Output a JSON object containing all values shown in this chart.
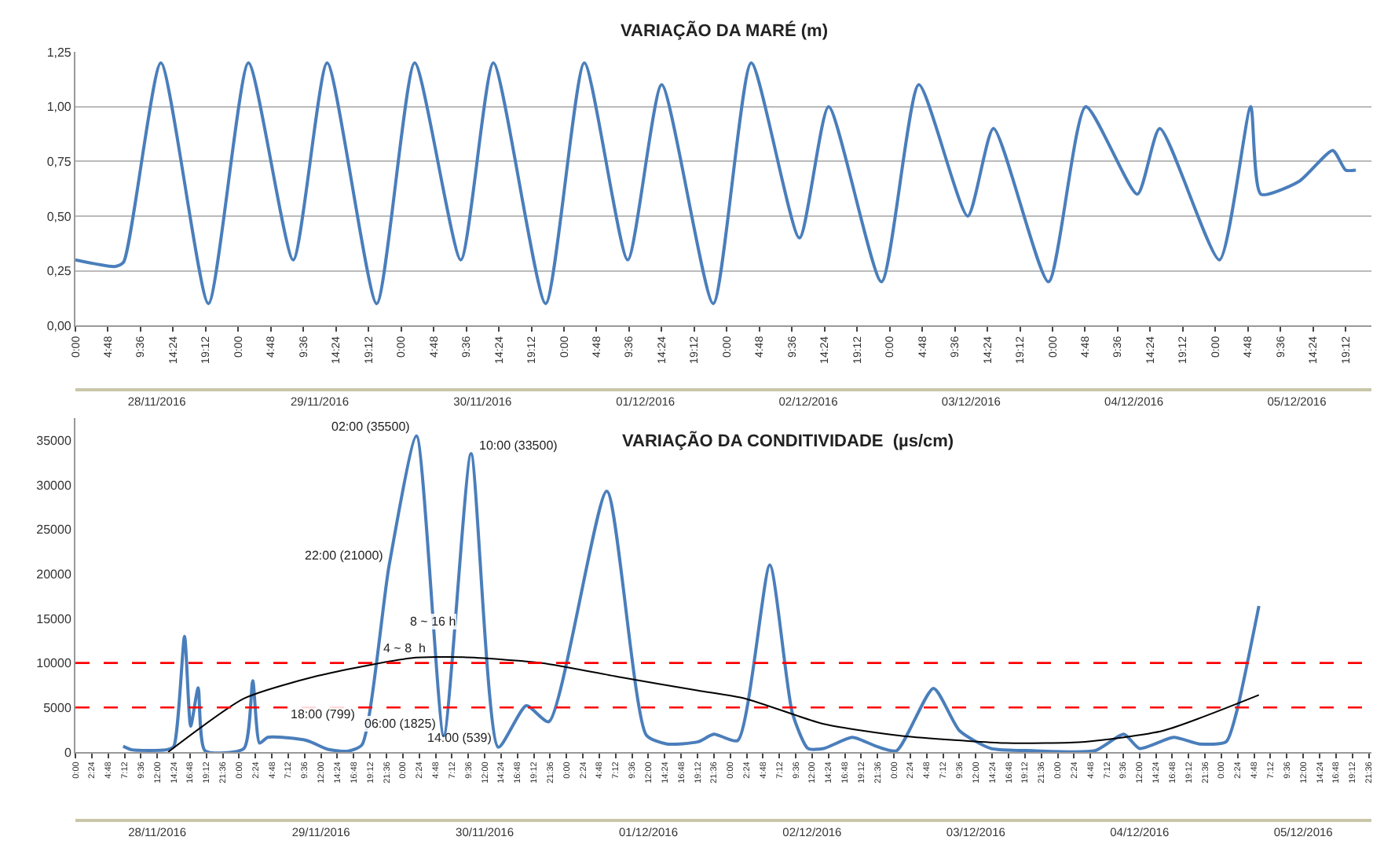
{
  "chart_data": [
    {
      "type": "line",
      "title": "VARIAÇÃO DA MARÉ (m)",
      "grid": "y",
      "x": [
        "2016-11-28T00:00",
        "2016-11-28T05:54",
        "2016-11-28T07:06",
        "2016-11-28T12:36",
        "2016-11-28T19:36",
        "2016-11-29T01:30",
        "2016-11-29T08:06",
        "2016-11-29T13:06",
        "2016-11-29T20:24",
        "2016-11-30T02:00",
        "2016-11-30T08:48",
        "2016-11-30T13:36",
        "2016-11-30T21:18",
        "2016-12-01T03:00",
        "2016-12-01T09:24",
        "2016-12-01T14:24",
        "2016-12-01T22:00",
        "2016-12-02T03:36",
        "2016-12-02T10:42",
        "2016-12-02T15:00",
        "2016-12-02T22:48",
        "2016-12-03T04:18",
        "2016-12-03T11:30",
        "2016-12-03T15:18",
        "2016-12-03T23:24",
        "2016-12-04T04:54",
        "2016-12-04T12:30",
        "2016-12-04T15:48",
        "2016-12-05T00:36",
        "2016-12-05T05:12",
        "2016-12-05T06:42",
        "2016-12-05T12:24",
        "2016-12-05T17:18",
        "2016-12-05T19:12",
        "2016-12-05T20:42"
      ],
      "series": [
        {
          "color": "#4a7ebb",
          "values": [
            0.3,
            0.27,
            0.29,
            1.2,
            0.1,
            1.2,
            0.3,
            1.2,
            0.1,
            1.2,
            0.3,
            1.2,
            0.1,
            1.2,
            0.3,
            1.1,
            0.1,
            1.2,
            0.4,
            1.0,
            0.2,
            1.1,
            0.5,
            0.9,
            0.2,
            1.0,
            0.6,
            0.9,
            0.3,
            1.0,
            0.6,
            0.66,
            0.8,
            0.71,
            0.71
          ]
        }
      ],
      "ylim": [
        0,
        1.25
      ],
      "yticks": [
        {
          "value": 0,
          "label": "0,00"
        },
        {
          "value": 0.25,
          "label": "0,25"
        },
        {
          "value": 0.5,
          "label": "0,50"
        },
        {
          "value": 0.75,
          "label": "0,75"
        },
        {
          "value": 1,
          "label": "1,00"
        },
        {
          "value": 1.25,
          "label": "1,25"
        }
      ],
      "xlim": [
        "2016-11-28T00:00",
        "2016-12-05T23:00"
      ],
      "xticks": [
        {
          "value": "2016-11-28T00:00",
          "label": "0:00"
        },
        {
          "value": "2016-11-28T04:48",
          "label": "4:48"
        },
        {
          "value": "2016-11-28T09:36",
          "label": "9:36"
        },
        {
          "value": "2016-11-28T14:24",
          "label": "14:24"
        },
        {
          "value": "2016-11-28T19:12",
          "label": "19:12"
        },
        {
          "value": "2016-11-29T00:00",
          "label": "0:00"
        },
        {
          "value": "2016-11-29T04:48",
          "label": "4:48"
        },
        {
          "value": "2016-11-29T09:36",
          "label": "9:36"
        },
        {
          "value": "2016-11-29T14:24",
          "label": "14:24"
        },
        {
          "value": "2016-11-29T19:12",
          "label": "19:12"
        },
        {
          "value": "2016-11-30T00:00",
          "label": "0:00"
        },
        {
          "value": "2016-11-30T04:48",
          "label": "4:48"
        },
        {
          "value": "2016-11-30T09:36",
          "label": "9:36"
        },
        {
          "value": "2016-11-30T14:24",
          "label": "14:24"
        },
        {
          "value": "2016-11-30T19:12",
          "label": "19:12"
        },
        {
          "value": "2016-12-01T00:00",
          "label": "0:00"
        },
        {
          "value": "2016-12-01T04:48",
          "label": "4:48"
        },
        {
          "value": "2016-12-01T09:36",
          "label": "9:36"
        },
        {
          "value": "2016-12-01T14:24",
          "label": "14:24"
        },
        {
          "value": "2016-12-01T19:12",
          "label": "19:12"
        },
        {
          "value": "2016-12-02T00:00",
          "label": "0:00"
        },
        {
          "value": "2016-12-02T04:48",
          "label": "4:48"
        },
        {
          "value": "2016-12-02T09:36",
          "label": "9:36"
        },
        {
          "value": "2016-12-02T14:24",
          "label": "14:24"
        },
        {
          "value": "2016-12-02T19:12",
          "label": "19:12"
        },
        {
          "value": "2016-12-03T00:00",
          "label": "0:00"
        },
        {
          "value": "2016-12-03T04:48",
          "label": "4:48"
        },
        {
          "value": "2016-12-03T09:36",
          "label": "9:36"
        },
        {
          "value": "2016-12-03T14:24",
          "label": "14:24"
        },
        {
          "value": "2016-12-03T19:12",
          "label": "19:12"
        },
        {
          "value": "2016-12-04T00:00",
          "label": "0:00"
        },
        {
          "value": "2016-12-04T04:48",
          "label": "4:48"
        },
        {
          "value": "2016-12-04T09:36",
          "label": "9:36"
        },
        {
          "value": "2016-12-04T14:24",
          "label": "14:24"
        },
        {
          "value": "2016-12-04T19:12",
          "label": "19:12"
        },
        {
          "value": "2016-12-05T00:00",
          "label": "0:00"
        },
        {
          "value": "2016-12-05T04:48",
          "label": "4:48"
        },
        {
          "value": "2016-12-05T09:36",
          "label": "9:36"
        },
        {
          "value": "2016-12-05T14:24",
          "label": "14:24"
        },
        {
          "value": "2016-12-05T19:12",
          "label": "19:12"
        }
      ],
      "x2lim": [
        "2016-11-28T00:00",
        "2016-12-05T23:00"
      ],
      "x2ticks": [
        {
          "value": "2016-11-28T12:00",
          "label": "28/11/2016"
        },
        {
          "value": "2016-11-29T12:00",
          "label": "29/11/2016"
        },
        {
          "value": "2016-11-30T12:00",
          "label": "30/11/2016"
        },
        {
          "value": "2016-12-01T12:00",
          "label": "01/12/2016"
        },
        {
          "value": "2016-12-02T12:00",
          "label": "02/12/2016"
        },
        {
          "value": "2016-12-03T12:00",
          "label": "03/12/2016"
        },
        {
          "value": "2016-12-04T12:00",
          "label": "04/12/2016"
        },
        {
          "value": "2016-12-05T12:00",
          "label": "05/12/2016"
        }
      ]
    },
    {
      "type": "line",
      "title": "VARIAÇÃO DA CONDITIVIDADE  (µs/cm)",
      "grid": false,
      "series": [
        {
          "color": "#4a7ebb",
          "x": [
            "2016-11-28T07:00",
            "2016-11-28T08:18",
            "2016-11-28T13:18",
            "2016-11-28T14:24",
            "2016-11-28T16:00",
            "2016-11-28T16:54",
            "2016-11-28T18:00",
            "2016-11-28T19:00",
            "2016-11-29T00:42",
            "2016-11-29T02:00",
            "2016-11-29T03:00",
            "2016-11-29T04:12",
            "2016-11-29T09:54",
            "2016-11-29T13:00",
            "2016-11-29T16:00",
            "2016-11-29T18:00",
            "2016-11-29T22:00",
            "2016-11-30T02:00",
            "2016-11-30T06:00",
            "2016-11-30T10:00",
            "2016-11-30T14:00",
            "2016-11-30T18:06",
            "2016-11-30T21:24",
            "2016-12-01T05:54",
            "2016-12-01T11:42",
            "2016-12-01T14:42",
            "2016-12-01T19:18",
            "2016-12-01T21:36",
            "2016-12-02T01:06",
            "2016-12-02T05:48",
            "2016-12-02T09:06",
            "2016-12-02T11:24",
            "2016-12-02T13:42",
            "2016-12-02T17:54",
            "2016-12-02T21:24",
            "2016-12-03T00:24",
            "2016-12-03T05:48",
            "2016-12-03T09:36",
            "2016-12-03T14:12",
            "2016-12-03T20:18",
            "2016-12-04T05:30",
            "2016-12-04T09:42",
            "2016-12-04T12:00",
            "2016-12-04T17:00",
            "2016-12-04T20:48",
            "2016-12-05T00:42",
            "2016-12-05T02:12",
            "2016-12-05T05:30"
          ],
          "values": [
            650,
            250,
            250,
            600,
            13000,
            2900,
            7200,
            150,
            400,
            8000,
            1000,
            1650,
            1300,
            300,
            100,
            799,
            21000,
            35500,
            1825,
            33500,
            539,
            5200,
            3400,
            29300,
            1900,
            900,
            1150,
            2000,
            1300,
            21000,
            4400,
            400,
            400,
            1650,
            650,
            150,
            7150,
            2400,
            400,
            150,
            150,
            2000,
            400,
            1650,
            900,
            1150,
            4400,
            16400
          ]
        },
        {
          "color": "#000000",
          "x": [
            "2016-11-28T13:36",
            "2016-11-29T00:42",
            "2016-11-29T11:30",
            "2016-11-30T01:12",
            "2016-11-30T08:54",
            "2016-11-30T20:24",
            "2016-12-01T07:54",
            "2016-12-01T19:18",
            "2016-12-02T02:12",
            "2016-12-02T13:42",
            "2016-12-03T01:12",
            "2016-12-03T16:30",
            "2016-12-04T04:00",
            "2016-12-04T15:30",
            "2016-12-05T05:30"
          ],
          "values": [
            0,
            6000,
            8550,
            10550,
            10650,
            10000,
            8400,
            6900,
            6000,
            3150,
            1800,
            1000,
            1150,
            2400,
            6400
          ]
        }
      ],
      "ref_lines": [
        {
          "axis": "y",
          "value": 10000,
          "color": "#ff0000",
          "line_style": "dashed"
        },
        {
          "axis": "y",
          "value": 5000,
          "color": "#ff0000",
          "line_style": "dashed"
        }
      ],
      "annotations": [
        {
          "text": "22:00 (21000)",
          "x": "2016-11-29T22:00",
          "y": 21000
        },
        {
          "text": "02:00 (35500)",
          "x": "2016-11-30T02:00",
          "y": 35500
        },
        {
          "text": "10:00 (33500)",
          "x": "2016-11-30T10:00",
          "y": 33500
        },
        {
          "text": "18:00 (799)",
          "x": "2016-11-29T18:00",
          "y": 799
        },
        {
          "text": "06:00 (1825)",
          "x": "2016-11-30T06:00",
          "y": 1825
        },
        {
          "text": "14:00 (539)",
          "x": "2016-11-30T14:00",
          "y": 539
        },
        {
          "text": "4 ~ 8  h",
          "x": "2016-11-30T00:18",
          "y": 10700
        },
        {
          "text": "8 ~ 16 h",
          "x": "2016-11-30T04:24",
          "y": 13600
        }
      ],
      "ylim": [
        0,
        37500
      ],
      "yticks": [
        0,
        5000,
        10000,
        15000,
        20000,
        25000,
        30000,
        35000
      ],
      "xlim": [
        "2016-11-28T00:00",
        "2016-12-05T22:00"
      ],
      "xticks": [
        {
          "value": "2016-11-28T00:00",
          "label": "0:00"
        },
        {
          "value": "2016-11-28T02:24",
          "label": "2:24"
        },
        {
          "value": "2016-11-28T04:48",
          "label": "4:48"
        },
        {
          "value": "2016-11-28T07:12",
          "label": "7:12"
        },
        {
          "value": "2016-11-28T09:36",
          "label": "9:36"
        },
        {
          "value": "2016-11-28T12:00",
          "label": "12:00"
        },
        {
          "value": "2016-11-28T14:24",
          "label": "14:24"
        },
        {
          "value": "2016-11-28T16:48",
          "label": "16:48"
        },
        {
          "value": "2016-11-28T19:12",
          "label": "19:12"
        },
        {
          "value": "2016-11-28T21:36",
          "label": "21:36"
        },
        {
          "value": "2016-11-29T00:00",
          "label": "0:00"
        },
        {
          "value": "2016-11-29T02:24",
          "label": "2:24"
        },
        {
          "value": "2016-11-29T04:48",
          "label": "4:48"
        },
        {
          "value": "2016-11-29T07:12",
          "label": "7:12"
        },
        {
          "value": "2016-11-29T09:36",
          "label": "9:36"
        },
        {
          "value": "2016-11-29T12:00",
          "label": "12:00"
        },
        {
          "value": "2016-11-29T14:24",
          "label": "14:24"
        },
        {
          "value": "2016-11-29T16:48",
          "label": "16:48"
        },
        {
          "value": "2016-11-29T19:12",
          "label": "19:12"
        },
        {
          "value": "2016-11-29T21:36",
          "label": "21:36"
        },
        {
          "value": "2016-11-30T00:00",
          "label": "0:00"
        },
        {
          "value": "2016-11-30T02:24",
          "label": "2:24"
        },
        {
          "value": "2016-11-30T04:48",
          "label": "4:48"
        },
        {
          "value": "2016-11-30T07:12",
          "label": "7:12"
        },
        {
          "value": "2016-11-30T09:36",
          "label": "9:36"
        },
        {
          "value": "2016-11-30T12:00",
          "label": "12:00"
        },
        {
          "value": "2016-11-30T14:24",
          "label": "14:24"
        },
        {
          "value": "2016-11-30T16:48",
          "label": "16:48"
        },
        {
          "value": "2016-11-30T19:12",
          "label": "19:12"
        },
        {
          "value": "2016-11-30T21:36",
          "label": "21:36"
        },
        {
          "value": "2016-12-01T00:00",
          "label": "0:00"
        },
        {
          "value": "2016-12-01T02:24",
          "label": "2:24"
        },
        {
          "value": "2016-12-01T04:48",
          "label": "4:48"
        },
        {
          "value": "2016-12-01T07:12",
          "label": "7:12"
        },
        {
          "value": "2016-12-01T09:36",
          "label": "9:36"
        },
        {
          "value": "2016-12-01T12:00",
          "label": "12:00"
        },
        {
          "value": "2016-12-01T14:24",
          "label": "14:24"
        },
        {
          "value": "2016-12-01T16:48",
          "label": "16:48"
        },
        {
          "value": "2016-12-01T19:12",
          "label": "19:12"
        },
        {
          "value": "2016-12-01T21:36",
          "label": "21:36"
        },
        {
          "value": "2016-12-02T00:00",
          "label": "0:00"
        },
        {
          "value": "2016-12-02T02:24",
          "label": "2:24"
        },
        {
          "value": "2016-12-02T04:48",
          "label": "4:48"
        },
        {
          "value": "2016-12-02T07:12",
          "label": "7:12"
        },
        {
          "value": "2016-12-02T09:36",
          "label": "9:36"
        },
        {
          "value": "2016-12-02T12:00",
          "label": "12:00"
        },
        {
          "value": "2016-12-02T14:24",
          "label": "14:24"
        },
        {
          "value": "2016-12-02T16:48",
          "label": "16:48"
        },
        {
          "value": "2016-12-02T19:12",
          "label": "19:12"
        },
        {
          "value": "2016-12-02T21:36",
          "label": "21:36"
        },
        {
          "value": "2016-12-03T00:00",
          "label": "0:00"
        },
        {
          "value": "2016-12-03T02:24",
          "label": "2:24"
        },
        {
          "value": "2016-12-03T04:48",
          "label": "4:48"
        },
        {
          "value": "2016-12-03T07:12",
          "label": "7:12"
        },
        {
          "value": "2016-12-03T09:36",
          "label": "9:36"
        },
        {
          "value": "2016-12-03T12:00",
          "label": "12:00"
        },
        {
          "value": "2016-12-03T14:24",
          "label": "14:24"
        },
        {
          "value": "2016-12-03T16:48",
          "label": "16:48"
        },
        {
          "value": "2016-12-03T19:12",
          "label": "19:12"
        },
        {
          "value": "2016-12-03T21:36",
          "label": "21:36"
        },
        {
          "value": "2016-12-04T00:00",
          "label": "0:00"
        },
        {
          "value": "2016-12-04T02:24",
          "label": "2:24"
        },
        {
          "value": "2016-12-04T04:48",
          "label": "4:48"
        },
        {
          "value": "2016-12-04T07:12",
          "label": "7:12"
        },
        {
          "value": "2016-12-04T09:36",
          "label": "9:36"
        },
        {
          "value": "2016-12-04T12:00",
          "label": "12:00"
        },
        {
          "value": "2016-12-04T14:24",
          "label": "14:24"
        },
        {
          "value": "2016-12-04T16:48",
          "label": "16:48"
        },
        {
          "value": "2016-12-04T19:12",
          "label": "19:12"
        },
        {
          "value": "2016-12-04T21:36",
          "label": "21:36"
        },
        {
          "value": "2016-12-05T00:00",
          "label": "0:00"
        },
        {
          "value": "2016-12-05T02:24",
          "label": "2:24"
        },
        {
          "value": "2016-12-05T04:48",
          "label": "4:48"
        },
        {
          "value": "2016-12-05T07:12",
          "label": "7:12"
        },
        {
          "value": "2016-12-05T09:36",
          "label": "9:36"
        },
        {
          "value": "2016-12-05T12:00",
          "label": "12:00"
        },
        {
          "value": "2016-12-05T14:24",
          "label": "14:24"
        },
        {
          "value": "2016-12-05T16:48",
          "label": "16:48"
        },
        {
          "value": "2016-12-05T19:12",
          "label": "19:12"
        },
        {
          "value": "2016-12-05T21:36",
          "label": "21:36"
        }
      ],
      "x2lim": [
        "2016-11-28T00:00",
        "2016-12-05T22:00"
      ],
      "x2ticks": [
        {
          "value": "2016-11-28T12:00",
          "label": "28/11/2016"
        },
        {
          "value": "2016-11-29T12:00",
          "label": "29/11/2016"
        },
        {
          "value": "2016-11-30T12:00",
          "label": "30/11/2016"
        },
        {
          "value": "2016-12-01T12:00",
          "label": "01/12/2016"
        },
        {
          "value": "2016-12-02T12:00",
          "label": "02/12/2016"
        },
        {
          "value": "2016-12-03T12:00",
          "label": "03/12/2016"
        },
        {
          "value": "2016-12-04T12:00",
          "label": "04/12/2016"
        },
        {
          "value": "2016-12-05T12:00",
          "label": "05/12/2016"
        }
      ]
    }
  ]
}
